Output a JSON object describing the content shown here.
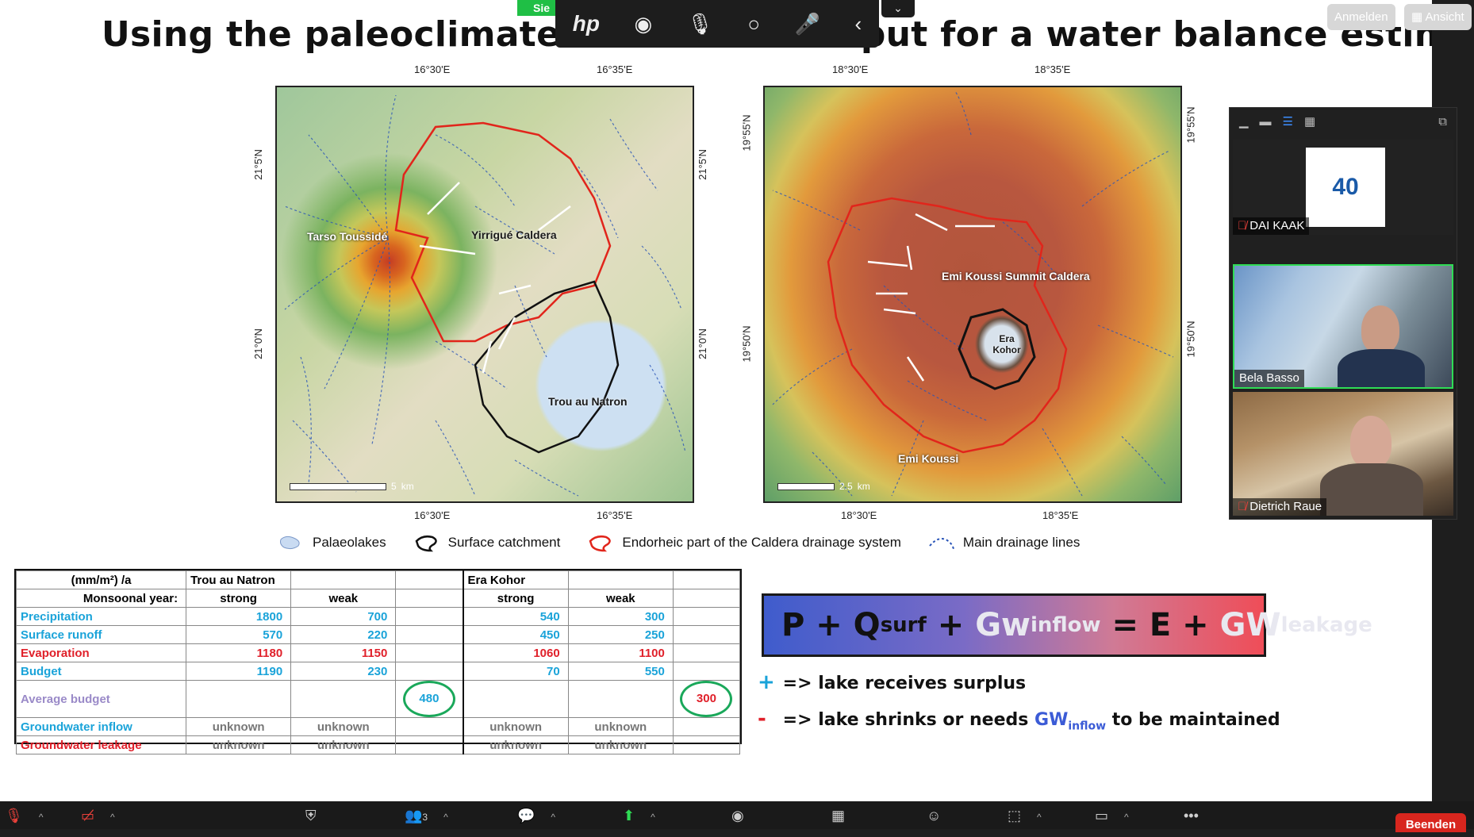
{
  "slide": {
    "title": "Using the paleoclimate simulation output for a water balance  estimate",
    "map1": {
      "top_coords": [
        "16°30'E",
        "16°35'E"
      ],
      "bottom_coords": [
        "16°30'E",
        "16°35'E"
      ],
      "left_coords": [
        "21°5'N",
        "21°0'N"
      ],
      "right_coords": [
        "21°5'N",
        "21°0'N"
      ],
      "labels": {
        "tarso": "Tarso Toussidé",
        "yirrigue": "Yirrigué Caldera",
        "trou": "Trou au Natron"
      },
      "scale_value": "5",
      "scale_unit": "km"
    },
    "map2": {
      "top_coords": [
        "18°30'E",
        "18°35'E"
      ],
      "bottom_coords": [
        "18°30'E",
        "18°35'E"
      ],
      "left_coords": [
        "19°55'N",
        "19°50'N"
      ],
      "right_coords": [
        "19°55'N",
        "19°50'N"
      ],
      "labels": {
        "summit": "Emi Koussi Summit Caldera",
        "era": "Era Kohor",
        "emi": "Emi Koussi"
      },
      "scale_value": "2.5",
      "scale_unit": "km"
    },
    "legend": [
      "Palaeolakes",
      "Surface catchment",
      "Endorheic part of the Caldera drainage system",
      "Main drainage lines"
    ],
    "table": {
      "unit": "(mm/m²) /a",
      "site1": "Trou au Natron",
      "site2": "Era Kohor",
      "monsoon_label": "Monsoonal year:",
      "strong": "strong",
      "weak": "weak",
      "rows": [
        {
          "label": "Precipitation",
          "color": "#1aa3d9",
          "v": [
            "1800",
            "700",
            "",
            "540",
            "300",
            ""
          ]
        },
        {
          "label": "Surface runoff",
          "color": "#1aa3d9",
          "v": [
            "570",
            "220",
            "",
            "450",
            "250",
            ""
          ]
        },
        {
          "label": "Evaporation",
          "color": "#e0202a",
          "v": [
            "1180",
            "1150",
            "",
            "1060",
            "1100",
            ""
          ]
        },
        {
          "label": "Budget",
          "color": "#1aa3d9",
          "v": [
            "1190",
            "230",
            "",
            "70",
            "550",
            ""
          ]
        },
        {
          "label": "Average budget",
          "color": "#9a8ac8",
          "v": [
            "",
            "",
            "480",
            "",
            "",
            "300"
          ]
        },
        {
          "label": "Groundwater inflow",
          "color": "#1aa3d9",
          "v": [
            "unknown",
            "unknown",
            "",
            "unknown",
            "unknown",
            ""
          ]
        },
        {
          "label": "Groundwater leakage",
          "color": "#e0202a",
          "v": [
            "unknown",
            "unknown",
            "",
            "unknown",
            "unknown",
            ""
          ]
        }
      ]
    },
    "formula": {
      "p": "P + Q",
      "surf": "surf",
      "plus1": " + ",
      "gw": "Gw",
      "inflow": "inflow",
      "eq": " = E + ",
      "gw2": "GW",
      "leakage": "leakage"
    },
    "notes": {
      "plus_sym": "+",
      "plus_text": "=> lake receives surplus",
      "minus_sym": "-",
      "minus_text": "=> lake shrinks or needs",
      "gw": "GW",
      "gw_sub": "inflow",
      "tail": "to be maintained"
    }
  },
  "share_tab": "Sie",
  "hp_toolbar": {
    "logo": "hp"
  },
  "top_buttons": {
    "login": "Anmelden",
    "view": "Ansicht"
  },
  "video_panel": {
    "participants": [
      {
        "name": "DAI KAAK",
        "muted": true
      },
      {
        "name": "Bela Basso",
        "muted": false
      },
      {
        "name": "Dietrich Raue",
        "muted": true
      }
    ],
    "logo_text": "40"
  },
  "toolbar": {
    "participants_count": "3",
    "end": "Beenden"
  },
  "colors": {
    "accent_green": "#1aa85a",
    "end_red": "#d8261e",
    "active_speaker": "#2fdc55"
  }
}
